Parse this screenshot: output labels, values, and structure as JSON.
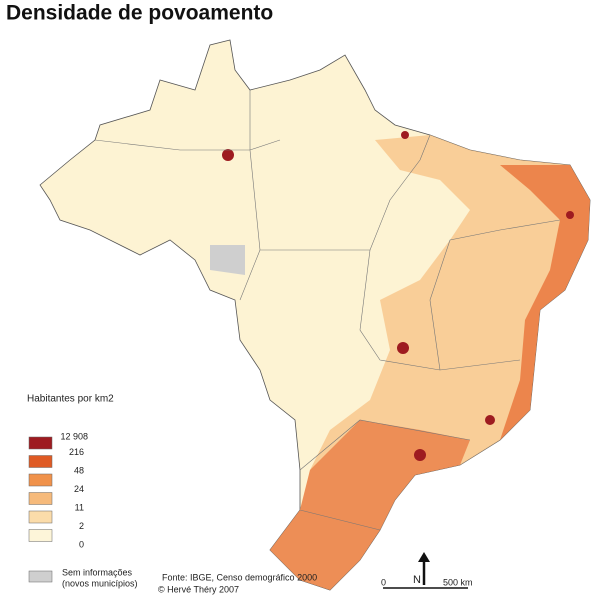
{
  "title": "Densidade de povoamento",
  "legend": {
    "title": "Habitantes por km2",
    "breaks": [
      "12 908",
      "216",
      "48",
      "24",
      "11",
      "2",
      "0"
    ],
    "colors": [
      "#9e1b20",
      "#df5a24",
      "#f0924b",
      "#f6ba7b",
      "#fbdcaa",
      "#fdf5d9"
    ],
    "no_data": {
      "color": "#cfcfcf",
      "label": "Sem informações",
      "note": "(novos municípios)"
    }
  },
  "source": [
    "Fonte: IBGE, Censo demográfico 2000",
    "© Hervé Théry 2007"
  ],
  "scale": {
    "start": "0",
    "end": "500 km",
    "north": "N"
  }
}
